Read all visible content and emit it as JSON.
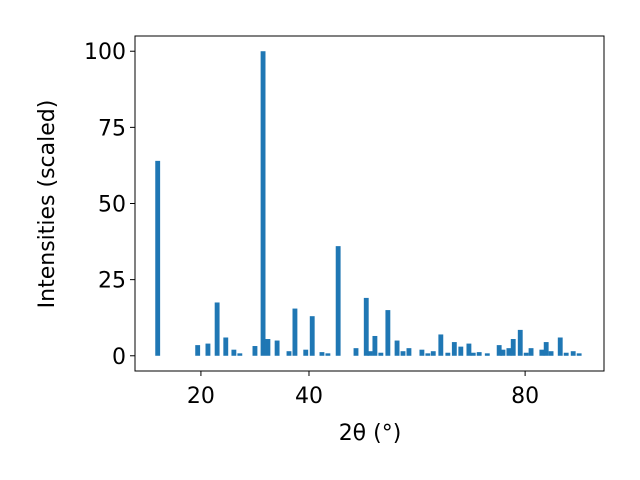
{
  "chart_data": {
    "type": "bar",
    "x_label": "2θ (°)",
    "y_label": "Intensities (scaled)",
    "x": [
      12.0,
      19.4,
      21.3,
      23.0,
      24.6,
      26.1,
      27.2,
      30.0,
      31.5,
      32.4,
      34.1,
      36.3,
      37.4,
      39.4,
      40.6,
      42.4,
      43.5,
      45.4,
      48.7,
      50.6,
      51.3,
      52.2,
      53.3,
      54.6,
      56.3,
      57.4,
      58.5,
      60.9,
      62.0,
      63.0,
      64.4,
      65.7,
      66.9,
      68.1,
      69.6,
      70.4,
      71.5,
      73.0,
      75.2,
      75.9,
      77.0,
      77.8,
      79.1,
      80.2,
      81.1,
      83.1,
      83.9,
      84.8,
      86.5,
      87.6,
      88.9,
      90.0
    ],
    "values": [
      64,
      3.5,
      4,
      17.5,
      6,
      2,
      0.8,
      3.2,
      100,
      5.5,
      5,
      1.5,
      15.5,
      2,
      13,
      1.2,
      0.8,
      36,
      2.5,
      19,
      1.5,
      6.5,
      1,
      15,
      5,
      1.5,
      2.5,
      2,
      0.8,
      1.5,
      7,
      1,
      4.5,
      3,
      4,
      1,
      1.2,
      0.8,
      3.5,
      2,
      2.5,
      5.5,
      8.5,
      1,
      2.5,
      2,
      4.5,
      1.5,
      6,
      1,
      1.5,
      0.8
    ],
    "color": "#1f77b4",
    "xlim": [
      7.8,
      94.6
    ],
    "xticks": [
      20,
      40,
      80
    ],
    "ylim": [
      -5,
      105
    ],
    "yticks": [
      0,
      25,
      50,
      75,
      100
    ]
  }
}
